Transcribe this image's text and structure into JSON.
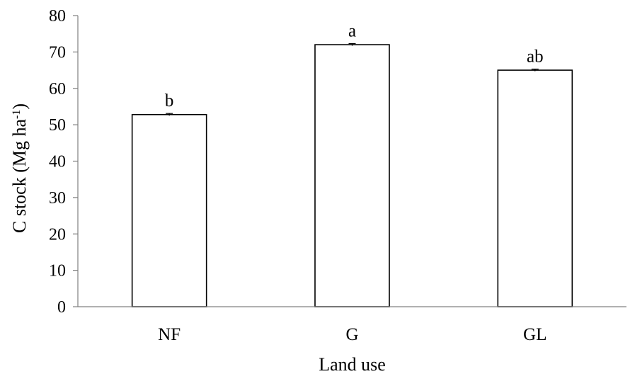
{
  "chart_data": {
    "type": "bar",
    "categories": [
      "NF",
      "G",
      "GL"
    ],
    "values": [
      52.8,
      72.0,
      65.0
    ],
    "error": [
      0.3,
      0.3,
      0.3
    ],
    "bar_labels": [
      "b",
      "a",
      "ab"
    ],
    "title": "",
    "xlabel": "Land use",
    "ylabel": "C stock (Mg ha",
    "ylabel_sup": "-1",
    "ylabel_end": ")",
    "ylim": [
      0,
      80
    ],
    "yticks": [
      0,
      10,
      20,
      30,
      40,
      50,
      60,
      70,
      80
    ],
    "grid": false,
    "legend": "none",
    "bar_fill": "#ffffff",
    "bar_stroke": "#000000",
    "axis_color": "#808080"
  }
}
